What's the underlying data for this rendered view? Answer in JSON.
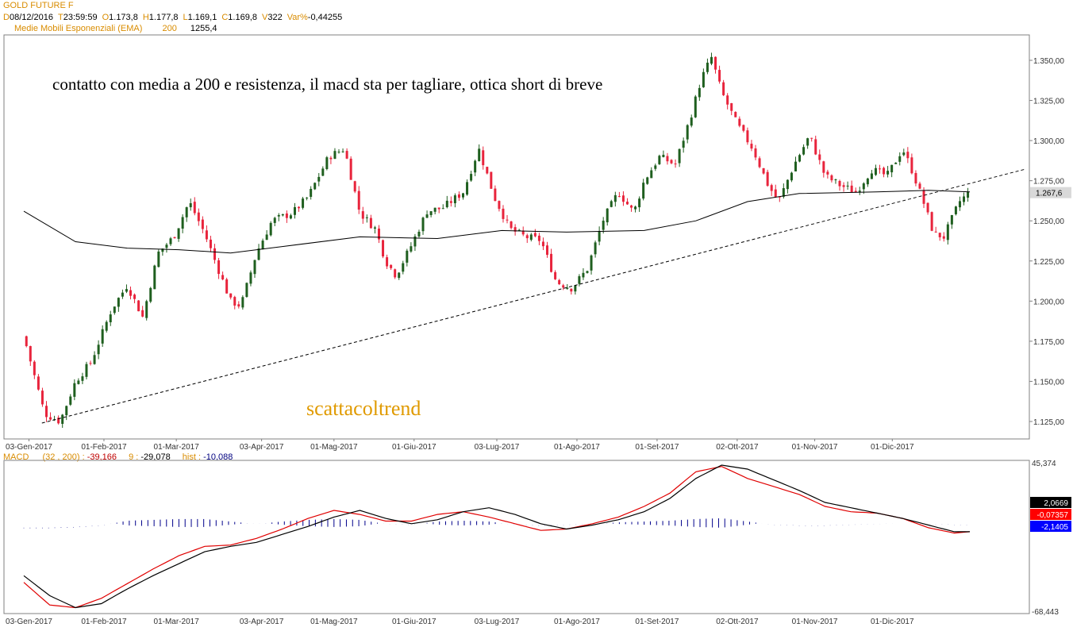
{
  "header": {
    "title": "GOLD FUTURE F",
    "ohlc": [
      {
        "k": "D",
        "v": "08/12/2016"
      },
      {
        "k": "T",
        "v": "23:59:59"
      },
      {
        "k": "O",
        "v": "1.173,8"
      },
      {
        "k": "H",
        "v": "1.177,8"
      },
      {
        "k": "L",
        "v": "1.169,1"
      },
      {
        "k": "C",
        "v": "1.169,8"
      },
      {
        "k": "V",
        "v": "322"
      },
      {
        "k": "Var%",
        "v": "-0,44255"
      }
    ],
    "ema_label": "Medie Mobili Esponenziali (EMA)",
    "ema_period": "200",
    "ema_value": "1255,4"
  },
  "annotation_text": "contatto con media a 200 e resistenza, il macd sta per tagliare, ottica short di breve",
  "watermark": "scattacoltrend",
  "macd_header": {
    "name": "MACD",
    "params": "(32 , 200) :",
    "macd_value": "-39,166",
    "signal_label": "9 :",
    "signal_value": "-29,078",
    "hist_label": "hist :",
    "hist_value": "-10,088"
  },
  "colors": {
    "up": "#1f5f1f",
    "down": "#e8243c",
    "ema": "#000000",
    "trendline": "#000000",
    "macd_line": "#000000",
    "signal_line": "#e00000",
    "hist": "#00008b",
    "watermark": "#e09a00",
    "label_orange": "#d98c00"
  },
  "chart_data": [
    {
      "type": "candlestick",
      "title": "GOLD FUTURE F",
      "x_labels": [
        "03-Gen-2017",
        "01-Feb-2017",
        "01-Mar-2017",
        "03-Apr-2017",
        "01-Mag-2017",
        "01-Giu-2017",
        "03-Lug-2017",
        "01-Ago-2017",
        "01-Set-2017",
        "02-Ott-2017",
        "01-Nov-2017",
        "01-Dic-2017"
      ],
      "y_ticks": [
        "1.125,00",
        "1.150,00",
        "1.175,00",
        "1.200,00",
        "1.225,00",
        "1.250,00",
        "1.275,00",
        "1.300,00",
        "1.325,00",
        "1.350,00"
      ],
      "ylim": [
        1115,
        1360
      ],
      "last_price_label": "1.267,6",
      "close_path": [
        {
          "d": 0,
          "p": 1178
        },
        {
          "d": 8,
          "p": 1130
        },
        {
          "d": 14,
          "p": 1125
        },
        {
          "d": 20,
          "p": 1150
        },
        {
          "d": 26,
          "p": 1162
        },
        {
          "d": 34,
          "p": 1195
        },
        {
          "d": 40,
          "p": 1210
        },
        {
          "d": 46,
          "p": 1190
        },
        {
          "d": 52,
          "p": 1230
        },
        {
          "d": 58,
          "p": 1240
        },
        {
          "d": 64,
          "p": 1262
        },
        {
          "d": 70,
          "p": 1242
        },
        {
          "d": 74,
          "p": 1225
        },
        {
          "d": 80,
          "p": 1200
        },
        {
          "d": 84,
          "p": 1197
        },
        {
          "d": 90,
          "p": 1230
        },
        {
          "d": 96,
          "p": 1250
        },
        {
          "d": 104,
          "p": 1255
        },
        {
          "d": 110,
          "p": 1265
        },
        {
          "d": 118,
          "p": 1290
        },
        {
          "d": 124,
          "p": 1295
        },
        {
          "d": 130,
          "p": 1255
        },
        {
          "d": 136,
          "p": 1245
        },
        {
          "d": 140,
          "p": 1225
        },
        {
          "d": 144,
          "p": 1216
        },
        {
          "d": 150,
          "p": 1235
        },
        {
          "d": 156,
          "p": 1256
        },
        {
          "d": 162,
          "p": 1258
        },
        {
          "d": 170,
          "p": 1268
        },
        {
          "d": 176,
          "p": 1295
        },
        {
          "d": 182,
          "p": 1265
        },
        {
          "d": 188,
          "p": 1245
        },
        {
          "d": 194,
          "p": 1240
        },
        {
          "d": 200,
          "p": 1238
        },
        {
          "d": 206,
          "p": 1212
        },
        {
          "d": 212,
          "p": 1208
        },
        {
          "d": 218,
          "p": 1220
        },
        {
          "d": 224,
          "p": 1250
        },
        {
          "d": 230,
          "p": 1268
        },
        {
          "d": 236,
          "p": 1255
        },
        {
          "d": 240,
          "p": 1275
        },
        {
          "d": 246,
          "p": 1290
        },
        {
          "d": 252,
          "p": 1285
        },
        {
          "d": 258,
          "p": 1315
        },
        {
          "d": 262,
          "p": 1338
        },
        {
          "d": 266,
          "p": 1352
        },
        {
          "d": 270,
          "p": 1330
        },
        {
          "d": 276,
          "p": 1310
        },
        {
          "d": 282,
          "p": 1295
        },
        {
          "d": 288,
          "p": 1272
        },
        {
          "d": 292,
          "p": 1262
        },
        {
          "d": 298,
          "p": 1285
        },
        {
          "d": 304,
          "p": 1303
        },
        {
          "d": 310,
          "p": 1278
        },
        {
          "d": 316,
          "p": 1272
        },
        {
          "d": 322,
          "p": 1268
        },
        {
          "d": 328,
          "p": 1282
        },
        {
          "d": 334,
          "p": 1278
        },
        {
          "d": 340,
          "p": 1295
        },
        {
          "d": 344,
          "p": 1280
        },
        {
          "d": 348,
          "p": 1262
        },
        {
          "d": 352,
          "p": 1242
        },
        {
          "d": 356,
          "p": 1240
        },
        {
          "d": 362,
          "p": 1262
        },
        {
          "d": 366,
          "p": 1268
        }
      ],
      "ema200_path": [
        {
          "d": 0,
          "p": 1256
        },
        {
          "d": 20,
          "p": 1237
        },
        {
          "d": 40,
          "p": 1233
        },
        {
          "d": 60,
          "p": 1232
        },
        {
          "d": 80,
          "p": 1230
        },
        {
          "d": 100,
          "p": 1234
        },
        {
          "d": 130,
          "p": 1240
        },
        {
          "d": 160,
          "p": 1239
        },
        {
          "d": 185,
          "p": 1244
        },
        {
          "d": 210,
          "p": 1243
        },
        {
          "d": 240,
          "p": 1244
        },
        {
          "d": 260,
          "p": 1250
        },
        {
          "d": 280,
          "p": 1262
        },
        {
          "d": 300,
          "p": 1267
        },
        {
          "d": 330,
          "p": 1268
        },
        {
          "d": 350,
          "p": 1269
        },
        {
          "d": 366,
          "p": 1268
        }
      ],
      "trendline": {
        "from": {
          "d": 7,
          "p": 1124
        },
        "to": {
          "d": 387,
          "p": 1282
        }
      }
    },
    {
      "type": "line",
      "title": "MACD",
      "x_labels": [
        "03-Gen-2017",
        "01-Feb-2017",
        "01-Mar-2017",
        "03-Apr-2017",
        "01-Mag-2017",
        "01-Giu-2017",
        "03-Lug-2017",
        "01-Ago-2017",
        "01-Set-2017",
        "02-Ott-2017",
        "01-Nov-2017",
        "01-Dic-2017"
      ],
      "ylim": [
        -68.443,
        45.374
      ],
      "y_tick_labels": [
        "45,374",
        "-68,443"
      ],
      "value_badges": [
        "2,0669",
        "-0,07357",
        "-2,1405"
      ],
      "series": [
        {
          "name": "MACD",
          "values": [
            [
              0,
              -40
            ],
            [
              10,
              -55
            ],
            [
              20,
              -64
            ],
            [
              30,
              -61
            ],
            [
              40,
              -50
            ],
            [
              50,
              -40
            ],
            [
              60,
              -31
            ],
            [
              70,
              -22
            ],
            [
              80,
              -18
            ],
            [
              90,
              -15
            ],
            [
              100,
              -9
            ],
            [
              110,
              -3
            ],
            [
              120,
              4
            ],
            [
              130,
              9
            ],
            [
              140,
              3
            ],
            [
              150,
              -1
            ],
            [
              160,
              2
            ],
            [
              170,
              8
            ],
            [
              180,
              11
            ],
            [
              190,
              6
            ],
            [
              200,
              -1
            ],
            [
              210,
              -5
            ],
            [
              220,
              -2
            ],
            [
              230,
              2
            ],
            [
              240,
              8
            ],
            [
              250,
              18
            ],
            [
              260,
              33
            ],
            [
              270,
              43
            ],
            [
              280,
              40
            ],
            [
              290,
              32
            ],
            [
              300,
              24
            ],
            [
              310,
              15
            ],
            [
              320,
              11
            ],
            [
              330,
              7
            ],
            [
              340,
              3
            ],
            [
              350,
              -2
            ],
            [
              360,
              -7
            ],
            [
              366,
              -7
            ]
          ]
        },
        {
          "name": "9",
          "values": [
            [
              0,
              -45
            ],
            [
              10,
              -62
            ],
            [
              20,
              -64
            ],
            [
              30,
              -57
            ],
            [
              40,
              -46
            ],
            [
              50,
              -35
            ],
            [
              60,
              -25
            ],
            [
              70,
              -18
            ],
            [
              80,
              -17
            ],
            [
              90,
              -12
            ],
            [
              100,
              -5
            ],
            [
              110,
              3
            ],
            [
              120,
              9
            ],
            [
              130,
              6
            ],
            [
              140,
              1
            ],
            [
              150,
              1
            ],
            [
              160,
              6
            ],
            [
              170,
              8
            ],
            [
              180,
              4
            ],
            [
              190,
              -1
            ],
            [
              200,
              -6
            ],
            [
              210,
              -5
            ],
            [
              220,
              -1
            ],
            [
              230,
              4
            ],
            [
              240,
              12
            ],
            [
              250,
              22
            ],
            [
              260,
              38
            ],
            [
              270,
              42
            ],
            [
              280,
              33
            ],
            [
              290,
              27
            ],
            [
              300,
              21
            ],
            [
              310,
              12
            ],
            [
              320,
              8
            ],
            [
              330,
              7
            ],
            [
              340,
              3
            ],
            [
              350,
              -4
            ],
            [
              360,
              -8
            ],
            [
              366,
              -7
            ]
          ]
        },
        {
          "name": "hist",
          "values": [
            [
              0,
              -6
            ],
            [
              10,
              -6
            ],
            [
              20,
              -5
            ],
            [
              30,
              -3
            ],
            [
              40,
              3
            ],
            [
              50,
              4
            ],
            [
              60,
              5
            ],
            [
              70,
              5
            ],
            [
              80,
              2
            ],
            [
              90,
              -1
            ],
            [
              100,
              2
            ],
            [
              110,
              4
            ],
            [
              120,
              5
            ],
            [
              130,
              4
            ],
            [
              140,
              -1
            ],
            [
              150,
              -2
            ],
            [
              160,
              2
            ],
            [
              170,
              3
            ],
            [
              180,
              2
            ],
            [
              190,
              -2
            ],
            [
              200,
              -3
            ],
            [
              210,
              -2
            ],
            [
              220,
              -1
            ],
            [
              230,
              1
            ],
            [
              240,
              2
            ],
            [
              250,
              3
            ],
            [
              260,
              5
            ],
            [
              270,
              6
            ],
            [
              280,
              2
            ],
            [
              290,
              -2
            ],
            [
              300,
              -3
            ],
            [
              310,
              -3
            ],
            [
              320,
              -2
            ],
            [
              330,
              -1
            ],
            [
              340,
              0
            ],
            [
              350,
              -1
            ],
            [
              360,
              -2
            ],
            [
              366,
              -2
            ]
          ]
        }
      ]
    }
  ]
}
